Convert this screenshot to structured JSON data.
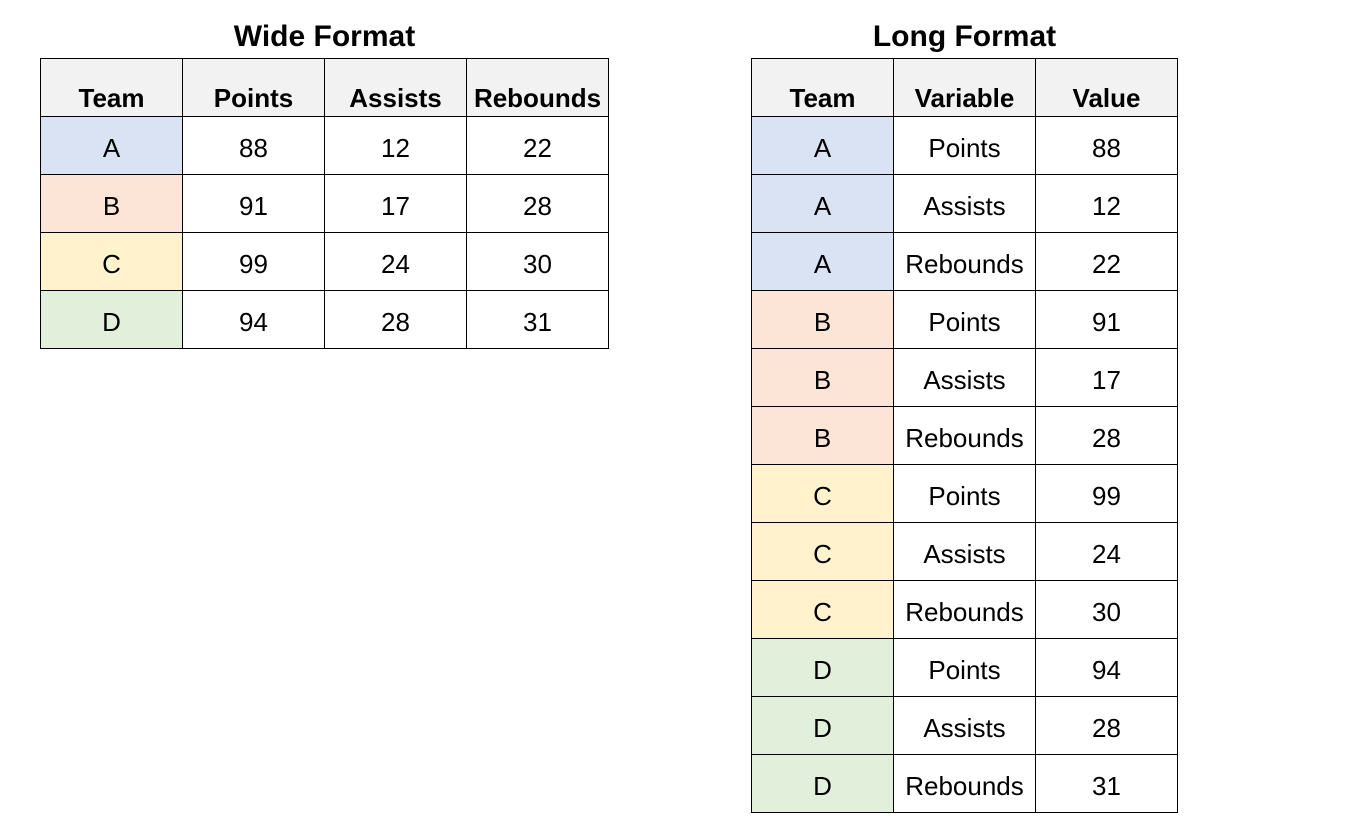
{
  "team_colors": {
    "A": "#dae3f3",
    "B": "#fce4d6",
    "C": "#fff2cc",
    "D": "#e2efda"
  },
  "wide": {
    "title": "Wide Format",
    "headers": [
      "Team",
      "Points",
      "Assists",
      "Rebounds"
    ],
    "rows": [
      [
        "A",
        "88",
        "12",
        "22"
      ],
      [
        "B",
        "91",
        "17",
        "28"
      ],
      [
        "C",
        "99",
        "24",
        "30"
      ],
      [
        "D",
        "94",
        "28",
        "31"
      ]
    ]
  },
  "long": {
    "title": "Long Format",
    "headers": [
      "Team",
      "Variable",
      "Value"
    ],
    "rows": [
      [
        "A",
        "Points",
        "88"
      ],
      [
        "A",
        "Assists",
        "12"
      ],
      [
        "A",
        "Rebounds",
        "22"
      ],
      [
        "B",
        "Points",
        "91"
      ],
      [
        "B",
        "Assists",
        "17"
      ],
      [
        "B",
        "Rebounds",
        "28"
      ],
      [
        "C",
        "Points",
        "99"
      ],
      [
        "C",
        "Assists",
        "24"
      ],
      [
        "C",
        "Rebounds",
        "30"
      ],
      [
        "D",
        "Points",
        "94"
      ],
      [
        "D",
        "Assists",
        "28"
      ],
      [
        "D",
        "Rebounds",
        "31"
      ]
    ]
  }
}
